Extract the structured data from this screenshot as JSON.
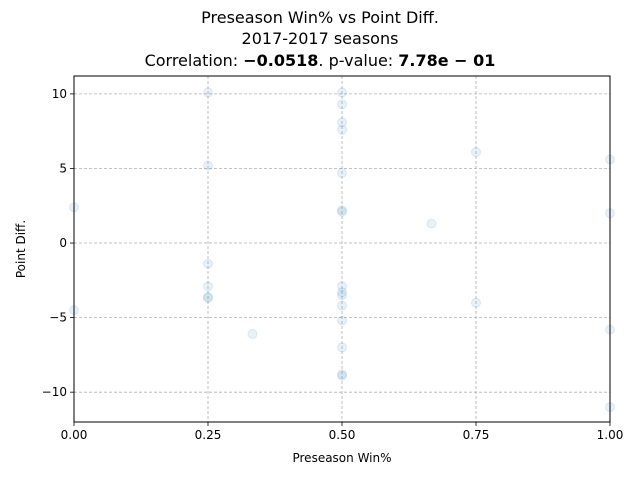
{
  "chart_data": {
    "type": "scatter",
    "title": "Preseason Win% vs Point Diff.",
    "subtitle": "2017-2017 seasons",
    "stats": {
      "correlation_label": "Correlation: ",
      "correlation_value": "−0.0518",
      "pvalue_label": ". p-value: ",
      "pvalue_value": "7.78e − 01"
    },
    "xlabel": "Preseason Win%",
    "ylabel": "Point Diff.",
    "xlim": [
      0,
      1
    ],
    "ylim": [
      -12,
      11.2
    ],
    "xticks": [
      0,
      0.25,
      0.5,
      0.75,
      1
    ],
    "xtick_labels": [
      "0.00",
      "0.25",
      "0.50",
      "0.75",
      "1.00"
    ],
    "yticks": [
      -10,
      -5,
      0,
      5,
      10
    ],
    "ytick_labels": [
      "−10",
      "−5",
      "0",
      "5",
      "10"
    ],
    "grid": true,
    "marker_color": "#1f77b4",
    "points": [
      {
        "x": 0.0,
        "y": 2.4
      },
      {
        "x": 0.0,
        "y": -4.5
      },
      {
        "x": 0.25,
        "y": 10.1
      },
      {
        "x": 0.25,
        "y": 5.2
      },
      {
        "x": 0.25,
        "y": -1.4
      },
      {
        "x": 0.25,
        "y": -2.9
      },
      {
        "x": 0.25,
        "y": -3.6
      },
      {
        "x": 0.25,
        "y": -3.7
      },
      {
        "x": 0.333,
        "y": -6.1
      },
      {
        "x": 0.5,
        "y": 10.1
      },
      {
        "x": 0.5,
        "y": 9.3
      },
      {
        "x": 0.5,
        "y": 8.1
      },
      {
        "x": 0.5,
        "y": 7.6
      },
      {
        "x": 0.5,
        "y": 4.7
      },
      {
        "x": 0.5,
        "y": 2.2
      },
      {
        "x": 0.5,
        "y": 2.1
      },
      {
        "x": 0.5,
        "y": -2.9
      },
      {
        "x": 0.5,
        "y": -3.3
      },
      {
        "x": 0.5,
        "y": -3.5
      },
      {
        "x": 0.5,
        "y": -4.2
      },
      {
        "x": 0.5,
        "y": -5.2
      },
      {
        "x": 0.5,
        "y": -7.0
      },
      {
        "x": 0.5,
        "y": -8.8
      },
      {
        "x": 0.5,
        "y": -8.9
      },
      {
        "x": 0.667,
        "y": 1.3
      },
      {
        "x": 0.75,
        "y": 6.1
      },
      {
        "x": 0.75,
        "y": -4.0
      },
      {
        "x": 1.0,
        "y": 5.6
      },
      {
        "x": 1.0,
        "y": 2.0
      },
      {
        "x": 1.0,
        "y": -5.8
      },
      {
        "x": 1.0,
        "y": -11.0
      }
    ]
  }
}
